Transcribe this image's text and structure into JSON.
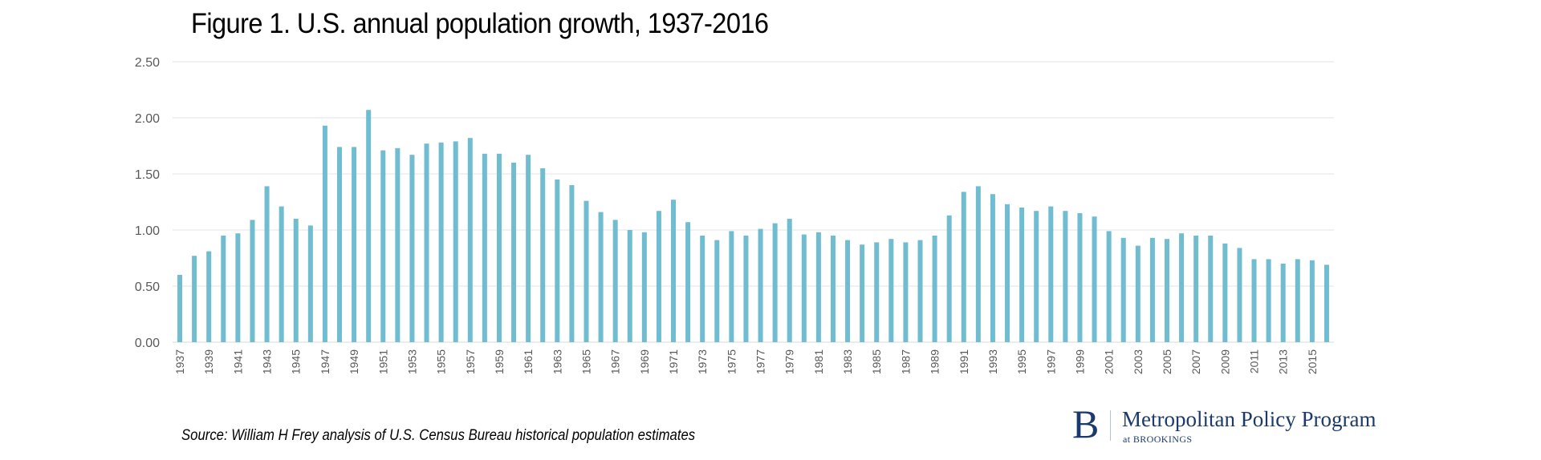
{
  "chart_data": {
    "type": "bar",
    "title": "Figure 1. U.S. annual population growth, 1937-2016",
    "xlabel": "",
    "ylabel": "",
    "ylim": [
      0,
      2.5
    ],
    "yticks": [
      "0.00",
      "0.50",
      "1.00",
      "1.50",
      "2.00",
      "2.50"
    ],
    "grid": true,
    "bar_color": "#70bcd1",
    "categories": [
      1937,
      1938,
      1939,
      1940,
      1941,
      1942,
      1943,
      1944,
      1945,
      1946,
      1947,
      1948,
      1949,
      1950,
      1951,
      1952,
      1953,
      1954,
      1955,
      1956,
      1957,
      1958,
      1959,
      1960,
      1961,
      1962,
      1963,
      1964,
      1965,
      1966,
      1967,
      1968,
      1969,
      1970,
      1971,
      1972,
      1973,
      1974,
      1975,
      1976,
      1977,
      1978,
      1979,
      1980,
      1981,
      1982,
      1983,
      1984,
      1985,
      1986,
      1987,
      1988,
      1989,
      1990,
      1991,
      1992,
      1993,
      1994,
      1995,
      1996,
      1997,
      1998,
      1999,
      2000,
      2001,
      2002,
      2003,
      2004,
      2005,
      2006,
      2007,
      2008,
      2009,
      2010,
      2011,
      2012,
      2013,
      2014,
      2015,
      2016
    ],
    "values": [
      0.6,
      0.77,
      0.81,
      0.95,
      0.97,
      1.09,
      1.39,
      1.21,
      1.1,
      1.04,
      1.93,
      1.74,
      1.74,
      2.07,
      1.71,
      1.73,
      1.67,
      1.77,
      1.78,
      1.79,
      1.82,
      1.68,
      1.68,
      1.6,
      1.67,
      1.55,
      1.45,
      1.4,
      1.26,
      1.16,
      1.09,
      1.0,
      0.98,
      1.17,
      1.27,
      1.07,
      0.95,
      0.91,
      0.99,
      0.95,
      1.01,
      1.06,
      1.1,
      0.96,
      0.98,
      0.95,
      0.91,
      0.87,
      0.89,
      0.92,
      0.89,
      0.91,
      0.95,
      1.13,
      1.34,
      1.39,
      1.32,
      1.23,
      1.2,
      1.17,
      1.21,
      1.17,
      1.15,
      1.12,
      0.99,
      0.93,
      0.86,
      0.93,
      0.92,
      0.97,
      0.95,
      0.95,
      0.88,
      0.84,
      0.74,
      0.74,
      0.7,
      0.74,
      0.73,
      0.69
    ],
    "xtick_labels": [
      "1937",
      "1939",
      "1941",
      "1943",
      "1945",
      "1947",
      "1949",
      "1951",
      "1953",
      "1955",
      "1957",
      "1959",
      "1961",
      "1963",
      "1965",
      "1967",
      "1969",
      "1971",
      "1973",
      "1975",
      "1977",
      "1979",
      "1981",
      "1983",
      "1985",
      "1987",
      "1989",
      "1991",
      "1993",
      "1995",
      "1997",
      "1999",
      "2001",
      "2003",
      "2005",
      "2007",
      "2009",
      "2011",
      "2013",
      "2015"
    ]
  },
  "source": "Source: William H Frey analysis of U.S. Census Bureau historical population estimates",
  "logo": {
    "letter": "B",
    "name": "Metropolitan Policy Program",
    "sub": "at BROOKINGS",
    "color": "#1b3a6b"
  }
}
